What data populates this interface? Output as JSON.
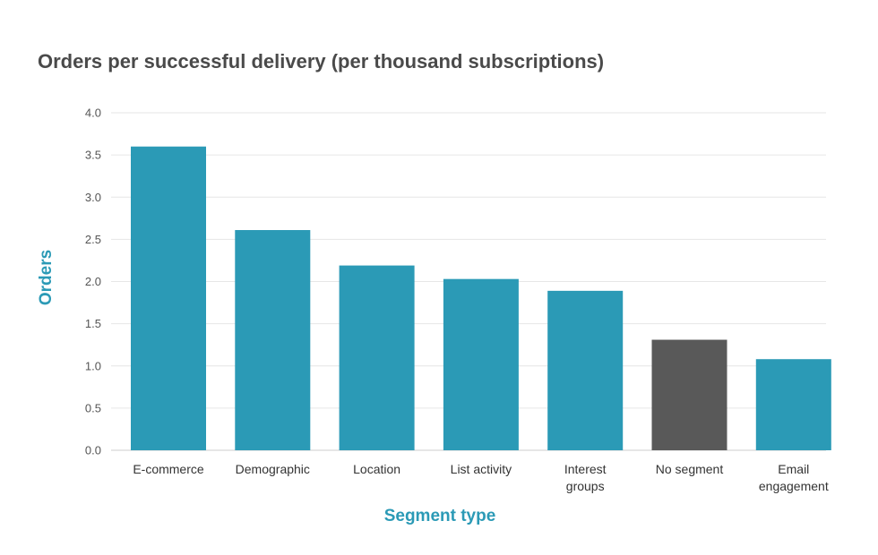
{
  "chart_data": {
    "type": "bar",
    "title": "Orders per successful delivery (per thousand subscriptions)",
    "xlabel": "Segment type",
    "ylabel": "Orders",
    "categories": [
      [
        "E-commerce"
      ],
      [
        "Demographic"
      ],
      [
        "Location"
      ],
      [
        "List activity"
      ],
      [
        "Interest",
        "groups"
      ],
      [
        "No segment"
      ],
      [
        "Email",
        "engagement"
      ]
    ],
    "values": [
      3.6,
      2.61,
      2.19,
      2.03,
      1.89,
      1.31,
      1.08
    ],
    "bar_colors": [
      "#2b9ab6",
      "#2b9ab6",
      "#2b9ab6",
      "#2b9ab6",
      "#2b9ab6",
      "#595959",
      "#2b9ab6"
    ],
    "ylim": [
      0,
      4
    ],
    "yticks": [
      "0.0",
      "0.5",
      "1.0",
      "1.5",
      "2.0",
      "2.5",
      "3.0",
      "3.5",
      "4.0"
    ],
    "grid": true,
    "colors": {
      "accent": "#2b9ab6",
      "highlight": "#595959",
      "title": "#4a4a4a",
      "grid": "#e6e6e6",
      "axis_title": "#2b9ab6"
    }
  }
}
